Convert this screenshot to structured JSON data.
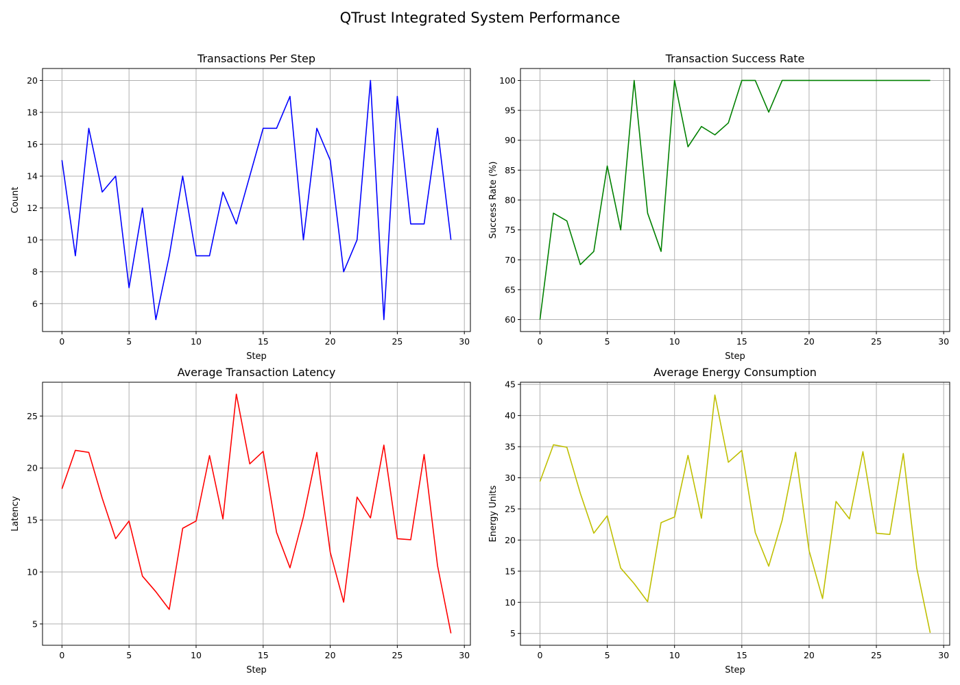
{
  "figure_title": "QTrust Integrated System Performance",
  "chart_data": [
    {
      "type": "line",
      "title": "Transactions Per Step",
      "xlabel": "Step",
      "ylabel": "Count",
      "color": "#0000ff",
      "xlim": [
        -1.45,
        30.45
      ],
      "ylim": [
        4.25,
        20.75
      ],
      "xticks": [
        0,
        5,
        10,
        15,
        20,
        25,
        30
      ],
      "yticks": [
        6,
        8,
        10,
        12,
        14,
        16,
        18,
        20
      ],
      "grid": true,
      "x": [
        0,
        1,
        2,
        3,
        4,
        5,
        6,
        7,
        8,
        9,
        10,
        11,
        12,
        13,
        14,
        15,
        16,
        17,
        18,
        19,
        20,
        21,
        22,
        23,
        24,
        25,
        26,
        27,
        28,
        29
      ],
      "values": [
        15,
        9,
        17,
        13,
        14,
        7,
        12,
        5,
        9,
        14,
        9,
        9,
        13,
        11,
        14,
        17,
        17,
        19,
        10,
        17,
        15,
        8,
        10,
        20,
        5,
        19,
        11,
        11,
        17,
        10
      ]
    },
    {
      "type": "line",
      "title": "Transaction Success Rate",
      "xlabel": "Step",
      "ylabel": "Success Rate (%)",
      "color": "#008000",
      "xlim": [
        -1.45,
        30.45
      ],
      "ylim": [
        58,
        102
      ],
      "xticks": [
        0,
        5,
        10,
        15,
        20,
        25,
        30
      ],
      "yticks": [
        60,
        65,
        70,
        75,
        80,
        85,
        90,
        95,
        100
      ],
      "grid": true,
      "x": [
        0,
        1,
        2,
        3,
        4,
        5,
        6,
        7,
        8,
        9,
        10,
        11,
        12,
        13,
        14,
        15,
        16,
        17,
        18,
        19,
        20,
        21,
        22,
        23,
        24,
        25,
        26,
        27,
        28,
        29
      ],
      "values": [
        60,
        77.8,
        76.5,
        69.2,
        71.4,
        85.7,
        75,
        100,
        77.8,
        71.4,
        100,
        88.9,
        92.3,
        90.9,
        92.9,
        100,
        100,
        94.7,
        100,
        100,
        100,
        100,
        100,
        100,
        100,
        100,
        100,
        100,
        100,
        100
      ]
    },
    {
      "type": "line",
      "title": "Average Transaction Latency",
      "xlabel": "Step",
      "ylabel": "Latency",
      "color": "#ff0000",
      "xlim": [
        -1.45,
        30.45
      ],
      "ylim": [
        2.95,
        28.25
      ],
      "xticks": [
        0,
        5,
        10,
        15,
        20,
        25,
        30
      ],
      "yticks": [
        5,
        10,
        15,
        20,
        25
      ],
      "grid": true,
      "x": [
        0,
        1,
        2,
        3,
        4,
        5,
        6,
        7,
        8,
        9,
        10,
        11,
        12,
        13,
        14,
        15,
        16,
        17,
        18,
        19,
        20,
        21,
        22,
        23,
        24,
        25,
        26,
        27,
        28,
        29
      ],
      "values": [
        18,
        21.7,
        21.5,
        17.1,
        13.2,
        14.9,
        9.6,
        8.1,
        6.4,
        14.2,
        14.9,
        21.2,
        15.1,
        27.1,
        20.4,
        21.6,
        13.8,
        10.4,
        15.3,
        21.5,
        11.9,
        7.1,
        17.2,
        15.2,
        22.2,
        13.2,
        13.1,
        21.3,
        10.6,
        4.1
      ]
    },
    {
      "type": "line",
      "title": "Average Energy Consumption",
      "xlabel": "Step",
      "ylabel": "Energy Units",
      "color": "#bfbf00",
      "xlim": [
        -1.45,
        30.45
      ],
      "ylim": [
        3.1,
        45.35
      ],
      "xticks": [
        0,
        5,
        10,
        15,
        20,
        25,
        30
      ],
      "yticks": [
        5,
        10,
        15,
        20,
        25,
        30,
        35,
        40,
        45
      ],
      "grid": true,
      "x": [
        0,
        1,
        2,
        3,
        4,
        5,
        6,
        7,
        8,
        9,
        10,
        11,
        12,
        13,
        14,
        15,
        16,
        17,
        18,
        19,
        20,
        21,
        22,
        23,
        24,
        25,
        26,
        27,
        28,
        29
      ],
      "values": [
        29.4,
        35.3,
        34.9,
        27.5,
        21.1,
        23.9,
        15.5,
        13,
        10.1,
        22.8,
        23.7,
        33.6,
        23.5,
        43.3,
        32.5,
        34.4,
        21.2,
        15.8,
        23.2,
        34.1,
        18.3,
        10.6,
        26.2,
        23.4,
        34.2,
        21.1,
        20.9,
        33.9,
        15.5,
        5.1
      ]
    }
  ]
}
